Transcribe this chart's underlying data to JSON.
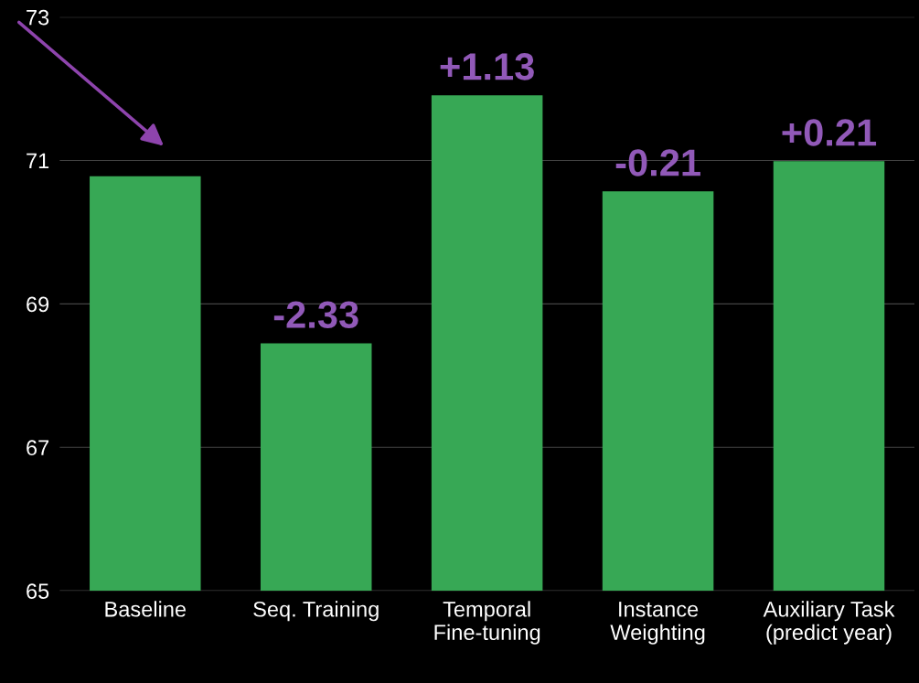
{
  "chart_data": {
    "type": "bar",
    "categories": [
      "Baseline",
      "Seq. Training",
      "Temporal\nFine-tuning",
      "Instance\nWeighting",
      "Auxiliary Task\n(predict year)"
    ],
    "values": [
      70.78,
      68.45,
      71.91,
      70.57,
      70.99
    ],
    "annotations": [
      {
        "text": "-2.33",
        "x": "Seq. Training",
        "y": 68.45
      },
      {
        "text": "+1.13",
        "x": "Temporal\nFine-tuning",
        "y": 71.91
      },
      {
        "text": "-0.21",
        "x": "Instance\nWeighting",
        "y": 70.57
      },
      {
        "text": "+0.21",
        "x": "Auxiliary Task\n(predict year)",
        "y": 70.99
      }
    ],
    "color": "#37a855",
    "ylim": [
      65,
      73
    ],
    "yticks": [
      65,
      67,
      69,
      71,
      73
    ],
    "grid": "y",
    "legend": false
  }
}
